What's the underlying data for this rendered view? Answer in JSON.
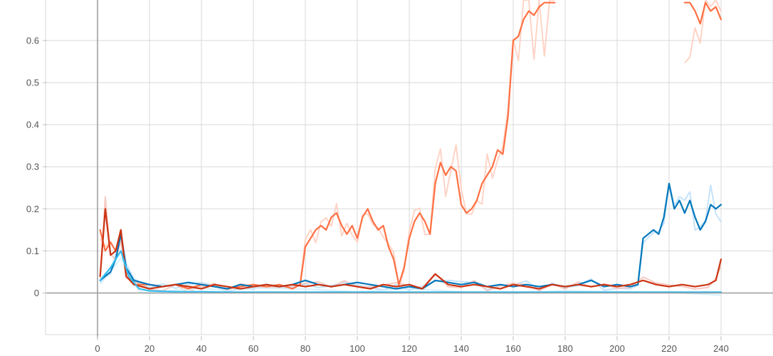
{
  "chart_data": {
    "type": "line",
    "title": "",
    "xlabel": "",
    "ylabel": "",
    "grid": true,
    "xlim": [
      -20,
      260
    ],
    "ylim": [
      -0.1,
      0.69
    ],
    "x_ticks": [
      0,
      20,
      40,
      60,
      80,
      100,
      120,
      140,
      160,
      180,
      200,
      220,
      240
    ],
    "x_tick_labels": [
      "0",
      "20",
      "40",
      "60",
      "80",
      "100",
      "120",
      "140",
      "160",
      "180",
      "200",
      "220",
      "240"
    ],
    "y_ticks": [
      0,
      0.1,
      0.2,
      0.3,
      0.4,
      0.5,
      0.6
    ],
    "y_tick_labels": [
      "0",
      "0.1",
      "0.2",
      "0.3",
      "0.4",
      "0.5",
      "0.6"
    ],
    "series": [
      {
        "color": "#ff7043",
        "raw_color": "#ffccbc",
        "x": [
          1,
          3,
          5,
          7,
          9,
          11,
          14,
          20,
          25,
          30,
          35,
          40,
          45,
          50,
          55,
          60,
          65,
          70,
          75,
          78,
          80,
          82,
          84,
          86,
          88,
          90,
          92,
          94,
          96,
          98,
          100,
          102,
          104,
          106,
          108,
          110,
          112,
          114,
          116,
          118,
          120,
          122,
          124,
          126,
          128,
          130,
          132,
          134,
          136,
          138,
          140,
          142,
          144,
          146,
          148,
          150,
          152,
          154,
          156,
          158,
          160,
          162,
          164,
          166,
          168,
          170,
          172,
          174,
          176
        ],
        "y": [
          0.15,
          0.1,
          0.12,
          0.1,
          0.15,
          0.05,
          0.02,
          0.02,
          0.015,
          0.02,
          0.01,
          0.02,
          0.015,
          0.01,
          0.015,
          0.02,
          0.015,
          0.02,
          0.01,
          0.02,
          0.11,
          0.13,
          0.15,
          0.16,
          0.15,
          0.18,
          0.19,
          0.16,
          0.14,
          0.16,
          0.13,
          0.18,
          0.2,
          0.17,
          0.15,
          0.16,
          0.11,
          0.08,
          0.02,
          0.06,
          0.13,
          0.17,
          0.19,
          0.17,
          0.14,
          0.26,
          0.31,
          0.28,
          0.3,
          0.29,
          0.21,
          0.19,
          0.2,
          0.22,
          0.26,
          0.28,
          0.3,
          0.34,
          0.33,
          0.42,
          0.6,
          0.61,
          0.65,
          0.67,
          0.66,
          0.68,
          0.69,
          0.69,
          0.69
        ]
      },
      {
        "color": "#ff7043",
        "raw_color": "#ffccbc",
        "x": [
          226,
          228,
          230,
          232,
          234,
          236,
          238,
          240
        ],
        "y": [
          0.69,
          0.69,
          0.67,
          0.64,
          0.69,
          0.67,
          0.68,
          0.65
        ]
      },
      {
        "color": "#0077bb",
        "raw_color": "#bbdefb",
        "x": [
          1,
          3,
          5,
          7,
          9,
          11,
          14,
          20,
          25,
          30,
          35,
          40,
          45,
          50,
          55,
          60,
          65,
          70,
          75,
          80,
          85,
          90,
          95,
          100,
          105,
          110,
          115,
          120,
          125,
          130,
          135,
          140,
          145,
          150,
          155,
          160,
          165,
          170,
          175,
          180,
          185,
          190,
          195,
          200,
          205,
          208,
          210,
          212,
          214,
          216,
          218,
          220,
          222,
          224,
          226,
          228,
          230,
          232,
          234,
          236,
          238,
          240
        ],
        "y": [
          0.03,
          0.04,
          0.05,
          0.08,
          0.14,
          0.06,
          0.03,
          0.02,
          0.015,
          0.02,
          0.025,
          0.02,
          0.015,
          0.01,
          0.02,
          0.015,
          0.02,
          0.015,
          0.02,
          0.03,
          0.02,
          0.015,
          0.02,
          0.025,
          0.02,
          0.015,
          0.01,
          0.015,
          0.01,
          0.03,
          0.025,
          0.02,
          0.025,
          0.015,
          0.02,
          0.015,
          0.02,
          0.015,
          0.02,
          0.015,
          0.02,
          0.03,
          0.015,
          0.02,
          0.015,
          0.02,
          0.13,
          0.14,
          0.15,
          0.14,
          0.18,
          0.26,
          0.2,
          0.22,
          0.19,
          0.22,
          0.18,
          0.15,
          0.17,
          0.21,
          0.2,
          0.21
        ]
      },
      {
        "color": "#cc3311",
        "raw_color": "#f4c2b8",
        "x": [
          1,
          3,
          5,
          7,
          9,
          11,
          14,
          20,
          25,
          30,
          35,
          40,
          45,
          50,
          55,
          60,
          65,
          70,
          75,
          80,
          85,
          90,
          95,
          100,
          105,
          110,
          115,
          120,
          125,
          130,
          135,
          140,
          145,
          150,
          155,
          160,
          165,
          170,
          175,
          180,
          185,
          190,
          195,
          200,
          205,
          210,
          215,
          220,
          225,
          230,
          235,
          238,
          240
        ],
        "y": [
          0.04,
          0.2,
          0.09,
          0.1,
          0.15,
          0.04,
          0.02,
          0.01,
          0.015,
          0.02,
          0.015,
          0.01,
          0.02,
          0.015,
          0.01,
          0.015,
          0.02,
          0.015,
          0.02,
          0.015,
          0.02,
          0.015,
          0.02,
          0.015,
          0.01,
          0.02,
          0.015,
          0.02,
          0.01,
          0.045,
          0.02,
          0.015,
          0.02,
          0.015,
          0.01,
          0.02,
          0.015,
          0.01,
          0.02,
          0.015,
          0.02,
          0.015,
          0.02,
          0.015,
          0.02,
          0.03,
          0.02,
          0.015,
          0.02,
          0.015,
          0.02,
          0.03,
          0.08
        ]
      },
      {
        "color": "#33bbee",
        "raw_color": "#cfeefb",
        "x": [
          1,
          5,
          9,
          12,
          16,
          20,
          30,
          40,
          50,
          60,
          80,
          100,
          120,
          140,
          160,
          180,
          200,
          220,
          240
        ],
        "y": [
          0.03,
          0.06,
          0.1,
          0.04,
          0.01,
          0.005,
          0.003,
          0.003,
          0.002,
          0.002,
          0.002,
          0.002,
          0.002,
          0.002,
          0.002,
          0.002,
          0.002,
          0.002,
          0.002
        ]
      }
    ]
  }
}
